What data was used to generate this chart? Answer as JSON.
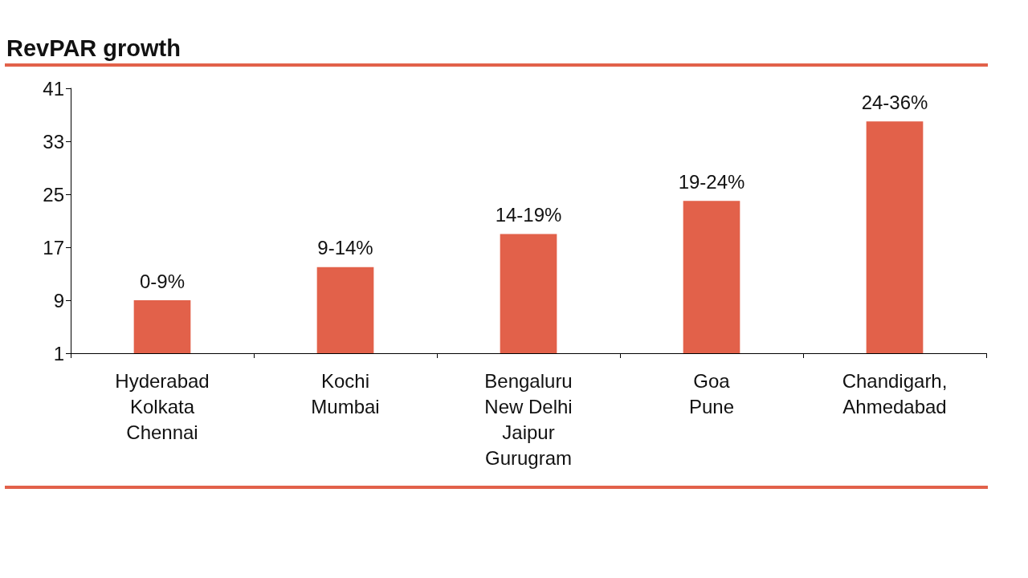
{
  "chart_data": {
    "type": "bar",
    "title": "RevPAR growth",
    "categories": [
      "Hyderabad\nKolkata\nChennai",
      "Kochi\nMumbai",
      "Bengaluru\nNew Delhi\nJaipur\nGurugram",
      "Goa\nPune",
      "Chandigarh,\nAhmedabad"
    ],
    "values": [
      9,
      14,
      19,
      24,
      36
    ],
    "annotations": [
      {
        "text": "0-9%",
        "x": "Hyderabad\nKolkata\nChennai",
        "y": 9
      },
      {
        "text": "9-14%",
        "x": "Kochi\nMumbai",
        "y": 14
      },
      {
        "text": "14-19%",
        "x": "Bengaluru\nNew Delhi\nJaipur\nGurugram",
        "y": 19
      },
      {
        "text": "19-24%",
        "x": "Goa\nPune",
        "y": 24
      },
      {
        "text": "24-36%",
        "x": "Chandigarh,\nAhmedabad",
        "y": 36
      }
    ],
    "color": "#e2614a",
    "ylim": [
      1,
      41
    ],
    "yticks": [
      1,
      9,
      17,
      25,
      33,
      41
    ],
    "grid": false
  }
}
